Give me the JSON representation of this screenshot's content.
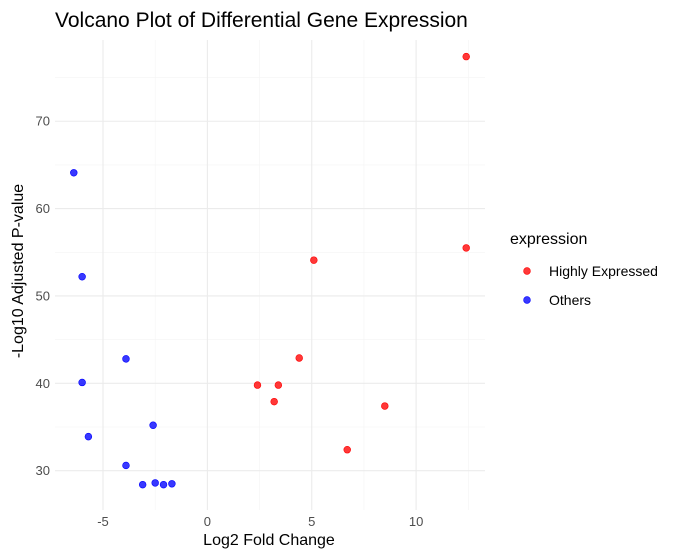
{
  "chart_data": {
    "type": "scatter",
    "title": "Volcano Plot of Differential Gene Expression",
    "xlabel": "Log2 Fold Change",
    "ylabel": "-Log10 Adjusted P-value",
    "xlim": [
      -7.3,
      13.3
    ],
    "ylim": [
      25.5,
      79.3
    ],
    "x_ticks": [
      -5,
      0,
      5,
      10
    ],
    "y_ticks": [
      30,
      40,
      50,
      60,
      70
    ],
    "grid": true,
    "legend": {
      "title": "expression",
      "position": "right"
    },
    "series": [
      {
        "name": "Highly Expressed",
        "color": "#ff0000",
        "points": [
          {
            "x": 12.4,
            "y": 77.4
          },
          {
            "x": 12.4,
            "y": 55.5
          },
          {
            "x": 5.1,
            "y": 54.1
          },
          {
            "x": 4.4,
            "y": 42.9
          },
          {
            "x": 2.4,
            "y": 39.8
          },
          {
            "x": 3.4,
            "y": 39.8
          },
          {
            "x": 3.2,
            "y": 37.9
          },
          {
            "x": 8.5,
            "y": 37.4
          },
          {
            "x": 6.7,
            "y": 32.4
          }
        ]
      },
      {
        "name": "Others",
        "color": "#0000ff",
        "points": [
          {
            "x": -6.4,
            "y": 64.1
          },
          {
            "x": -6.0,
            "y": 52.2
          },
          {
            "x": -3.9,
            "y": 42.8
          },
          {
            "x": -6.0,
            "y": 40.1
          },
          {
            "x": -2.6,
            "y": 35.2
          },
          {
            "x": -5.7,
            "y": 33.9
          },
          {
            "x": -3.9,
            "y": 30.6
          },
          {
            "x": -3.1,
            "y": 28.4
          },
          {
            "x": -2.5,
            "y": 28.6
          },
          {
            "x": -2.1,
            "y": 28.4
          },
          {
            "x": -1.7,
            "y": 28.5
          }
        ]
      }
    ]
  }
}
